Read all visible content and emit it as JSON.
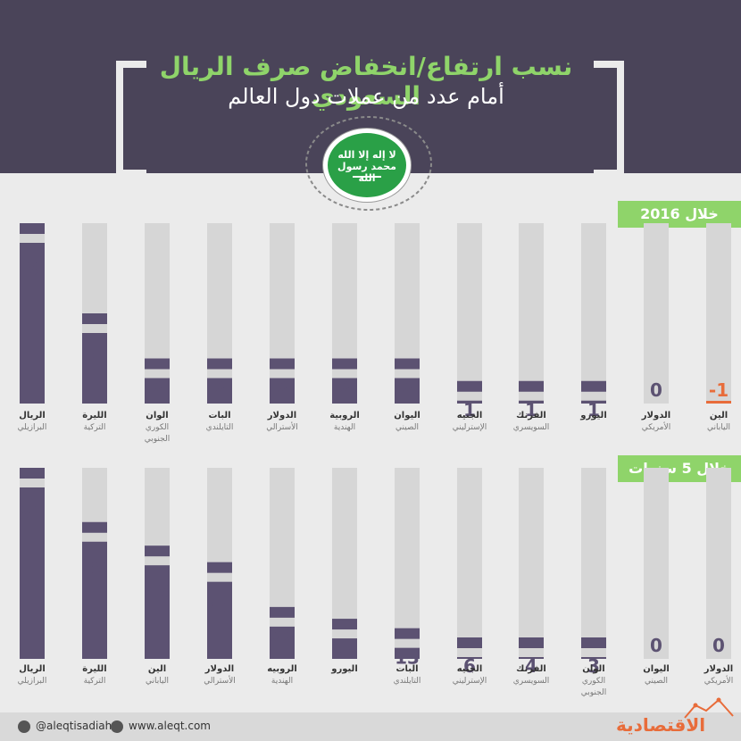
{
  "header": {
    "title_line1": "نسب ارتفاع/انخفاض صرف الريال السعودي",
    "title_line2": "أمام عدد من عملات دول العالم",
    "flag_script": "لا إله إلا الله محمد رسول الله"
  },
  "colors": {
    "bar_positive": "#5c5272",
    "bar_negative": "#e86c3a",
    "track": "#d6d6d6",
    "header_bg": "#4a4459",
    "accent_green": "#8fd46a",
    "flag_green": "#2aa047"
  },
  "chart_data": [
    {
      "type": "bar",
      "section_label": "خلال 2016",
      "categories": [
        {
          "line1": "الين",
          "line2": "الياباني",
          "line3": ""
        },
        {
          "line1": "الدولار",
          "line2": "الأمريكي",
          "line3": ""
        },
        {
          "line1": "اليورو",
          "line2": "",
          "line3": ""
        },
        {
          "line1": "الفرنك",
          "line2": "السويسري",
          "line3": ""
        },
        {
          "line1": "الجنيه",
          "line2": "الإسترليني",
          "line3": ""
        },
        {
          "line1": "اليوان",
          "line2": "الصيني",
          "line3": ""
        },
        {
          "line1": "الروبية",
          "line2": "الهندية",
          "line3": ""
        },
        {
          "line1": "الدولار",
          "line2": "الأسترالي",
          "line3": ""
        },
        {
          "line1": "البات",
          "line2": "التايلندي",
          "line3": ""
        },
        {
          "line1": "الوان",
          "line2": "الكوري",
          "line3": "الجنوبي"
        },
        {
          "line1": "الليرة",
          "line2": "التركية",
          "line3": ""
        },
        {
          "line1": "الريال",
          "line2": "البرازيلي",
          "line3": ""
        }
      ],
      "values": [
        -1,
        0,
        1,
        1,
        1,
        2,
        2,
        2,
        2,
        2,
        4,
        8
      ],
      "value_labels": [
        "-1",
        "0",
        "1",
        "1",
        "1",
        "2",
        "2",
        "2",
        "2",
        "2",
        "4",
        "8"
      ],
      "ylim": [
        0,
        8
      ]
    },
    {
      "type": "bar",
      "section_label": "خلال 5 سنوات",
      "categories": [
        {
          "line1": "الدولار",
          "line2": "الأمريكي",
          "line3": ""
        },
        {
          "line1": "اليوان",
          "line2": "الصيني",
          "line3": ""
        },
        {
          "line1": "الوان",
          "line2": "الكوري",
          "line3": "الجنوبي"
        },
        {
          "line1": "الفرنك",
          "line2": "السويسري",
          "line3": ""
        },
        {
          "line1": "الجنيه",
          "line2": "الإسترليني",
          "line3": ""
        },
        {
          "line1": "البات",
          "line2": "التايلندي",
          "line3": ""
        },
        {
          "line1": "اليورو",
          "line2": "",
          "line3": ""
        },
        {
          "line1": "الروبيه",
          "line2": "الهندية",
          "line3": ""
        },
        {
          "line1": "الدولار",
          "line2": "الأسترالي",
          "line3": ""
        },
        {
          "line1": "الين",
          "line2": "الياباني",
          "line3": ""
        },
        {
          "line1": "الليرة",
          "line2": "التركية",
          "line3": ""
        },
        {
          "line1": "الريال",
          "line2": "البرازيلي",
          "line3": ""
        }
      ],
      "values": [
        0,
        0,
        3,
        4,
        6,
        13,
        17,
        22,
        41,
        48,
        58,
        81
      ],
      "value_labels": [
        "0",
        "0",
        "3",
        "4",
        "6",
        "13",
        "17",
        "22",
        "41",
        "48",
        "58",
        "81"
      ],
      "ylim": [
        0,
        81
      ]
    }
  ],
  "footer": {
    "twitter": "@aleqtisadiah",
    "website": "www.aleqt.com",
    "logo": "الاقتصادية"
  }
}
